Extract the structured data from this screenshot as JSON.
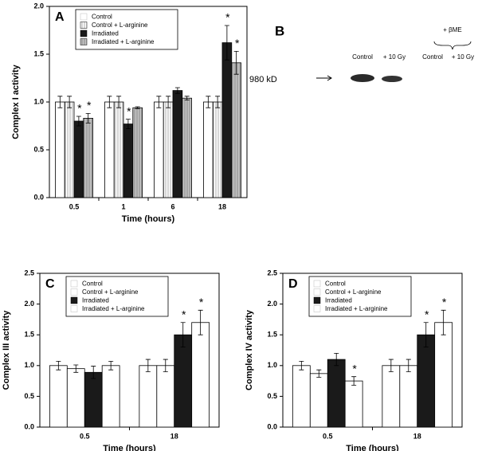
{
  "chart_data": [
    {
      "type": "bar",
      "panel": "A",
      "ylabel": "Complex I activity",
      "xlabel": "Time (hours)",
      "categories": [
        "0.5",
        "1",
        "6",
        "18"
      ],
      "ylim": [
        0,
        2
      ],
      "yticks": [
        {
          "value": 0,
          "label": "0.0"
        },
        0.5,
        {
          "value": 1,
          "label": "1.0"
        },
        1.5,
        {
          "value": 2,
          "label": "2.0"
        }
      ],
      "legend": "upper-left",
      "series": [
        {
          "name": "Control",
          "color": "#ffffff",
          "values": [
            1,
            1,
            1,
            1
          ],
          "errors": [
            0.06,
            0.06,
            0.06,
            0.06
          ]
        },
        {
          "name": "Control + L-arginine",
          "color": "#ffffff",
          "hatch": "vertical",
          "values": [
            1,
            1,
            1,
            1
          ],
          "errors": [
            0.06,
            0.06,
            0.06,
            0.06
          ]
        },
        {
          "name": "Irradiated",
          "color": "#1a1a1a",
          "values": [
            0.8,
            0.77,
            1.12,
            1.62
          ],
          "errors": [
            0.05,
            0.05,
            0.03,
            0.18
          ],
          "significance": [
            "*",
            "*",
            null,
            "*"
          ]
        },
        {
          "name": "Irradiated + L-arginine",
          "color": "#c4c4c4",
          "hatch": "vertical",
          "values": [
            0.83,
            0.94,
            1.04,
            1.41
          ],
          "errors": [
            0.05,
            0.01,
            0.02,
            0.12
          ],
          "significance": [
            "*",
            null,
            null,
            "*"
          ]
        }
      ]
    },
    {
      "type": "bar",
      "panel": "C",
      "ylabel": "Complex III activity",
      "xlabel": "Time (hours)",
      "categories": [
        "0.5",
        "18"
      ],
      "ylim": [
        0,
        2.5
      ],
      "yticks": [
        {
          "value": 0,
          "label": "0.0"
        },
        0.5,
        {
          "value": 1,
          "label": "1.0"
        },
        1.5,
        {
          "value": 2,
          "label": "2.0"
        },
        2.5
      ],
      "legend": "upper-left",
      "series": [
        {
          "name": "Control",
          "color": "#ffffff",
          "values": [
            1.0,
            1.0
          ],
          "errors": [
            0.07,
            0.1
          ]
        },
        {
          "name": "Control + L-arginine",
          "color": "#ffffff",
          "values": [
            0.95,
            1.0
          ],
          "errors": [
            0.06,
            0.1
          ]
        },
        {
          "name": "Irradiated",
          "color": "#1a1a1a",
          "values": [
            0.89,
            1.5
          ],
          "errors": [
            0.1,
            0.2
          ],
          "significance": [
            null,
            "*"
          ]
        },
        {
          "name": "Irradiated + L-arginine",
          "color": "#ffffff",
          "values": [
            1.0,
            1.7
          ],
          "errors": [
            0.07,
            0.2
          ],
          "significance": [
            null,
            "*"
          ]
        }
      ]
    },
    {
      "type": "bar",
      "panel": "D",
      "ylabel": "Complex IV activity",
      "xlabel": "Time (hours)",
      "categories": [
        "0.5",
        "18"
      ],
      "ylim": [
        0,
        2.5
      ],
      "yticks": [
        {
          "value": 0,
          "label": "0.0"
        },
        0.5,
        {
          "value": 1,
          "label": "1.0"
        },
        1.5,
        {
          "value": 2,
          "label": "2.0"
        },
        2.5
      ],
      "legend": "upper-left",
      "series": [
        {
          "name": "Control",
          "color": "#ffffff",
          "values": [
            1.0,
            1.0
          ],
          "errors": [
            0.07,
            0.1
          ]
        },
        {
          "name": "Control + L-arginine",
          "color": "#ffffff",
          "values": [
            0.87,
            1.0
          ],
          "errors": [
            0.06,
            0.1
          ]
        },
        {
          "name": "Irradiated",
          "color": "#1a1a1a",
          "values": [
            1.1,
            1.5
          ],
          "errors": [
            0.1,
            0.2
          ],
          "significance": [
            null,
            "*"
          ]
        },
        {
          "name": "Irradiated + L-arginine",
          "color": "#ffffff",
          "values": [
            0.75,
            1.7
          ],
          "errors": [
            0.07,
            0.2
          ],
          "significance": [
            "*",
            "*"
          ]
        }
      ]
    }
  ],
  "blot": {
    "panel": "B",
    "marker": "980 kD",
    "lanes": [
      "Control",
      "+ 10 Gy"
    ],
    "treatment": "+ βME",
    "treated_lanes": [
      "Control",
      "+ 10 Gy"
    ]
  }
}
